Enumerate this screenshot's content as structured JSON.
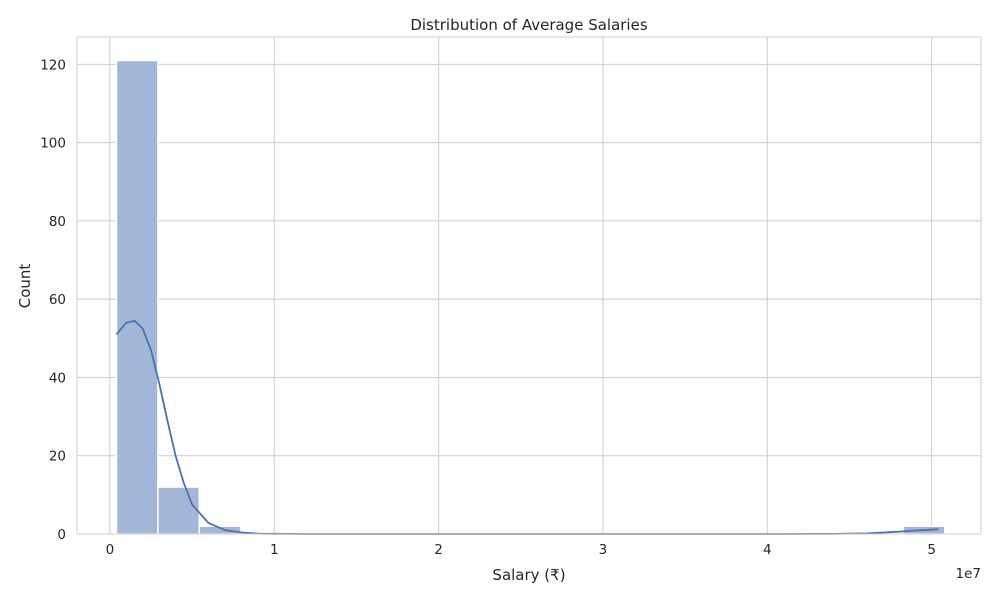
{
  "chart_data": {
    "type": "bar",
    "title": "Distribution of Average Salaries",
    "xlabel": "Salary (₹)",
    "ylabel": "Count",
    "x_scale_label": "1e7",
    "xlim": [
      -0.2,
      5.3
    ],
    "ylim": [
      0,
      127
    ],
    "x_ticks": [
      0,
      1,
      2,
      3,
      4,
      5
    ],
    "x_tick_labels": [
      "0",
      "1",
      "2",
      "3",
      "4",
      "5"
    ],
    "y_ticks": [
      0,
      20,
      40,
      60,
      80,
      100,
      120
    ],
    "y_tick_labels": [
      "0",
      "20",
      "40",
      "60",
      "80",
      "100",
      "120"
    ],
    "grid": true,
    "bin_start": 0.04,
    "bin_width": 0.252,
    "values": [
      121,
      12,
      2,
      0,
      0,
      0,
      0,
      0,
      0,
      0,
      0,
      0,
      0,
      0,
      0,
      0,
      0,
      0,
      0,
      2
    ],
    "kde": {
      "x": [
        0.04,
        0.1,
        0.15,
        0.2,
        0.25,
        0.3,
        0.35,
        0.4,
        0.45,
        0.5,
        0.6,
        0.7,
        0.8,
        0.9,
        1.0,
        1.1,
        1.2,
        1.3,
        1.5,
        2.0,
        3.0,
        4.0,
        4.4,
        4.6,
        4.8,
        4.9,
        5.0,
        5.04
      ],
      "y": [
        51,
        54,
        54.5,
        52.5,
        47,
        38.5,
        29,
        20,
        13,
        7.5,
        2.8,
        1,
        0.4,
        0.1,
        0.05,
        0.02,
        0.01,
        0,
        0,
        0,
        0,
        0,
        0.02,
        0.15,
        0.6,
        0.9,
        1.1,
        1.2
      ]
    },
    "colors": {
      "bar_fill": "#a3b6d7",
      "bar_edge": "#ffffff",
      "kde_line": "#4c72b0",
      "grid": "#cccccc",
      "spine": "#cccccc"
    }
  }
}
